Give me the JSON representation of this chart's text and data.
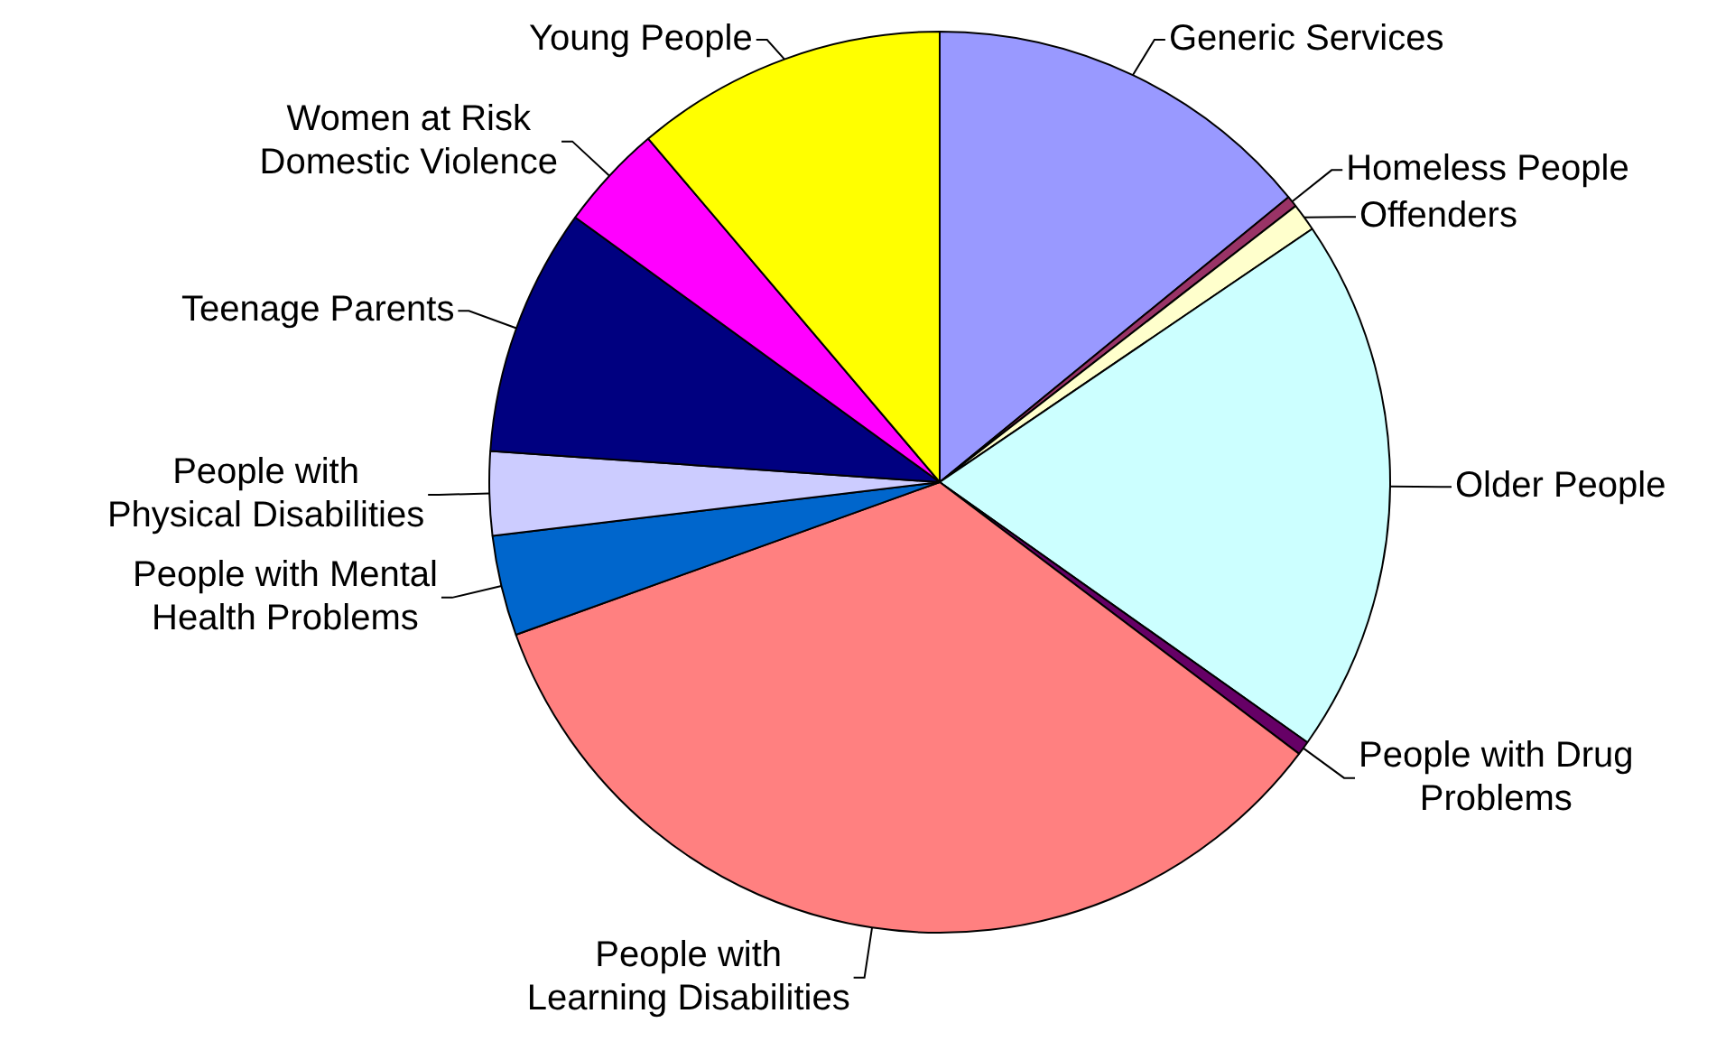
{
  "chart_data": {
    "type": "pie",
    "categories": [
      "Generic Services",
      "Homeless People",
      "Offenders",
      "Older People",
      "People with Drug\nProblems",
      "People with\nLearning Disabilities",
      "People with Mental\nHealth Problems",
      "People with\nPhysical Disabilities",
      "Teenage Parents",
      "Women at Risk\nDomestic Violence",
      "Young People"
    ],
    "values": [
      14.1,
      0.4,
      1.0,
      19.3,
      0.5,
      34.2,
      3.6,
      3.0,
      8.9,
      3.8,
      11.2
    ],
    "colors": [
      "#9999ff",
      "#993366",
      "#ffffcc",
      "#ccffff",
      "#660066",
      "#ff8080",
      "#0066cc",
      "#ccccff",
      "#000080",
      "#ff00ff",
      "#ffff00"
    ],
    "legend": false
  }
}
